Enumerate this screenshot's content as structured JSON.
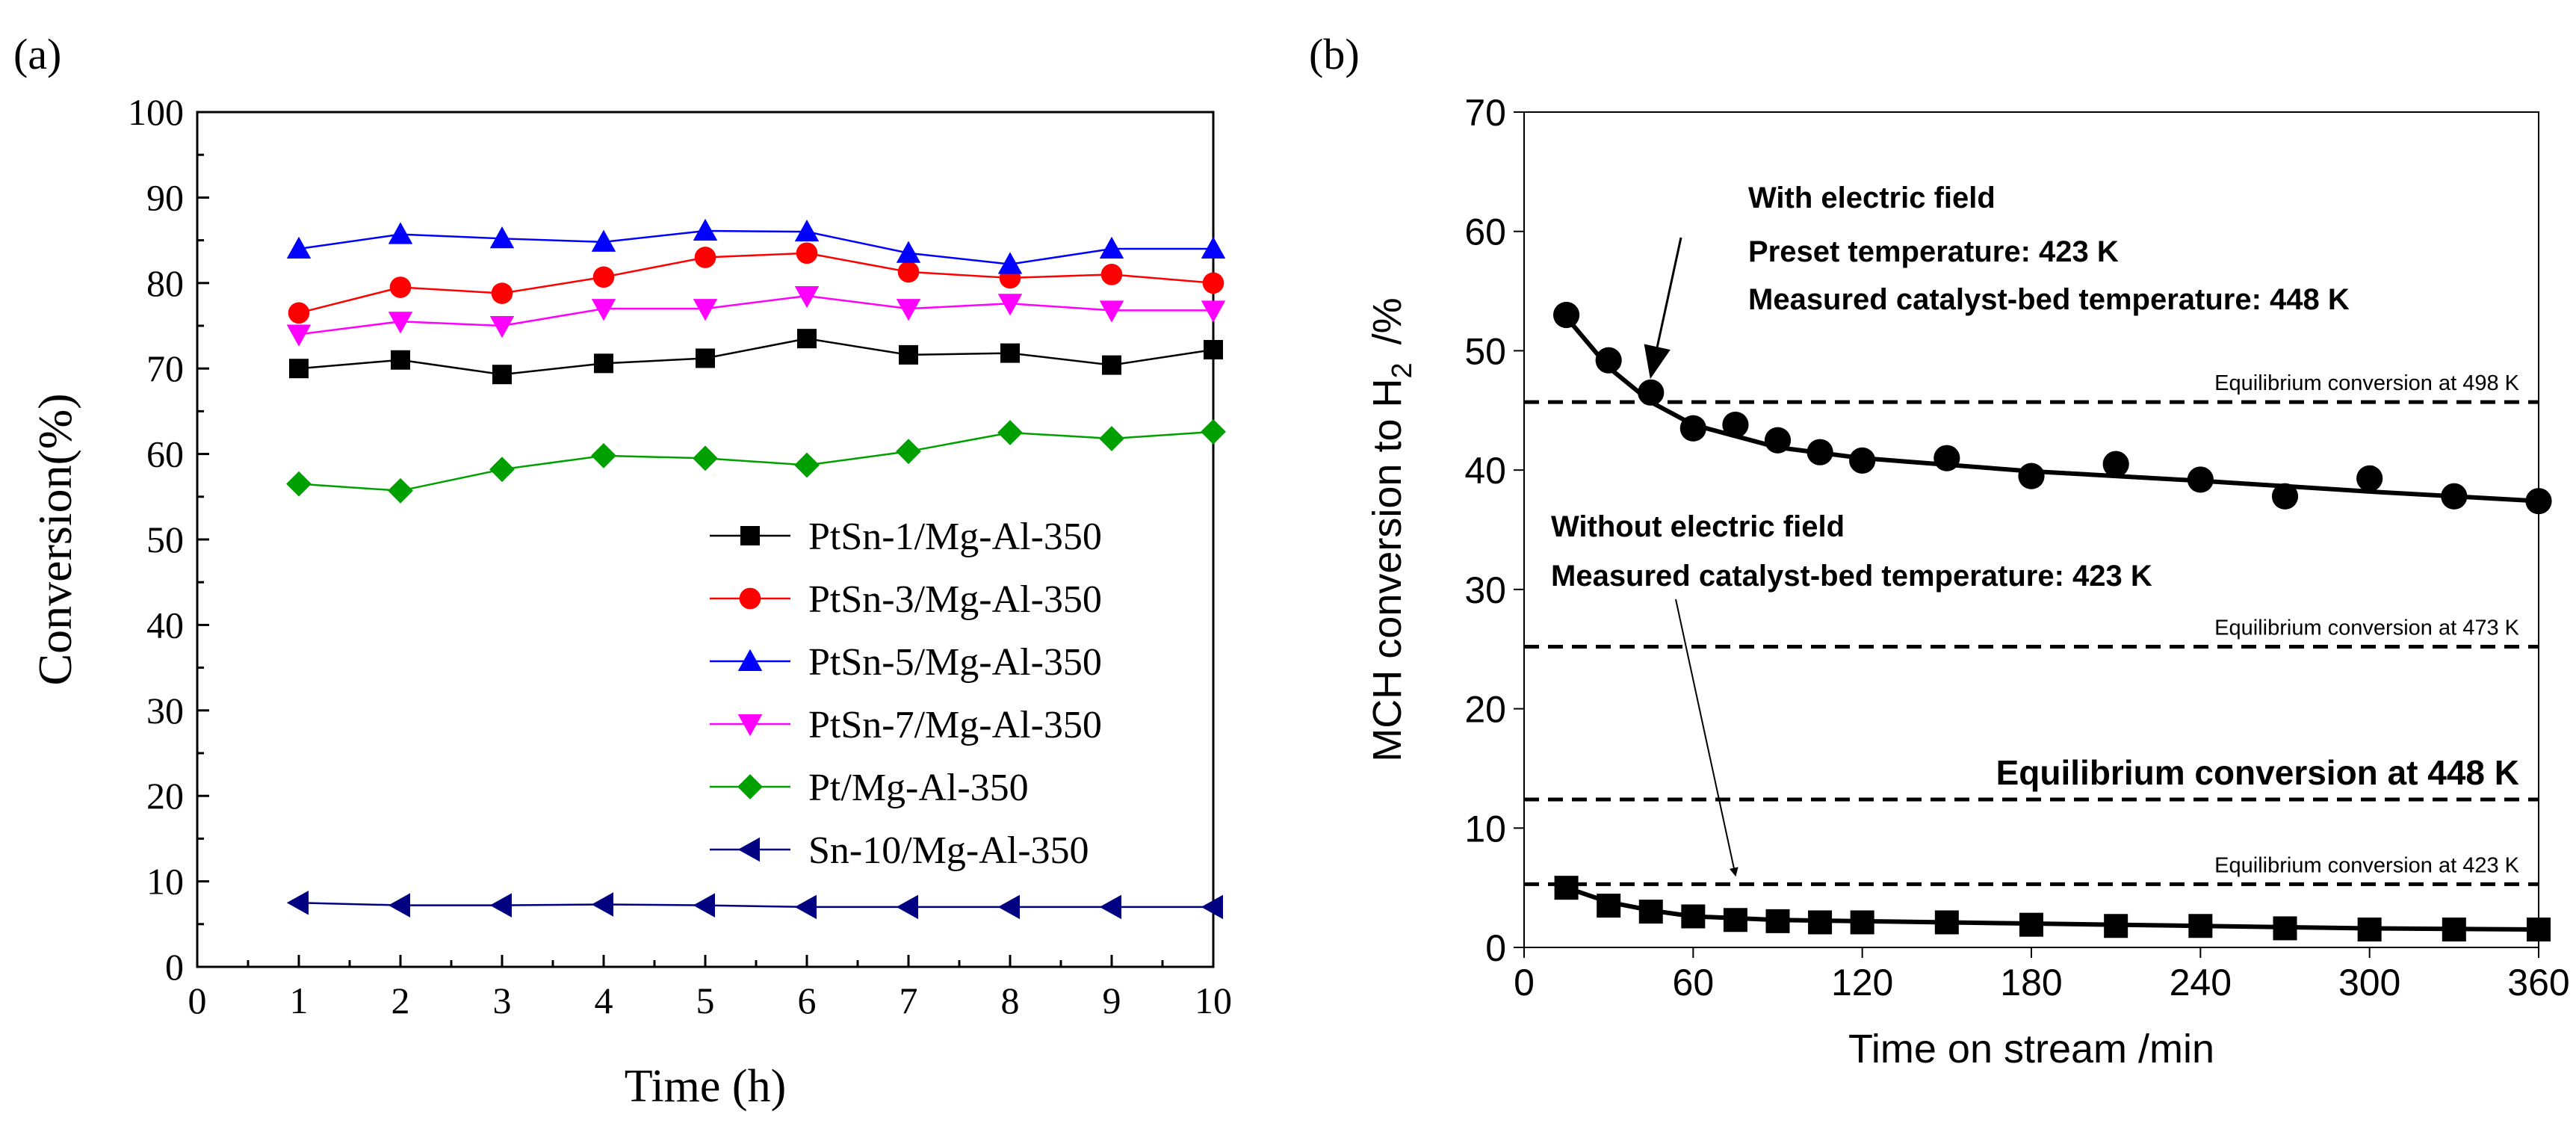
{
  "chart_data": [
    {
      "panel": "(a)",
      "type": "line",
      "xlabel": "Time (h)",
      "ylabel": "Conversion(%)",
      "xlim": [
        0,
        10
      ],
      "ylim": [
        0,
        100
      ],
      "xticks": [
        "0",
        "1",
        "2",
        "3",
        "4",
        "5",
        "6",
        "7",
        "8",
        "9",
        "10"
      ],
      "yticks": [
        "0",
        "10",
        "20",
        "30",
        "40",
        "50",
        "60",
        "70",
        "80",
        "90",
        "100"
      ],
      "x": [
        1,
        2,
        3,
        4,
        5,
        6,
        7,
        8,
        9,
        10
      ],
      "legend_position": "lower-right",
      "series": [
        {
          "name": "PtSn-1/Mg-Al-350",
          "marker": "square",
          "color": "#000000",
          "values": [
            70.0,
            71.0,
            69.3,
            70.6,
            71.2,
            73.5,
            71.6,
            71.8,
            70.4,
            72.2
          ]
        },
        {
          "name": "PtSn-3/Mg-Al-350",
          "marker": "circle",
          "color": "#ff0000",
          "values": [
            76.5,
            79.5,
            78.8,
            80.7,
            83.0,
            83.5,
            81.3,
            80.6,
            81.0,
            80.0
          ]
        },
        {
          "name": "PtSn-5/Mg-Al-350",
          "marker": "triangle-up",
          "color": "#0000ff",
          "values": [
            84.0,
            85.7,
            85.2,
            84.8,
            86.1,
            86.0,
            83.5,
            82.2,
            84.0,
            84.0
          ]
        },
        {
          "name": "PtSn-7/Mg-Al-350",
          "marker": "triangle-down",
          "color": "#ff00ff",
          "values": [
            74.0,
            75.5,
            75.0,
            77.0,
            77.0,
            78.5,
            77.0,
            77.6,
            76.8,
            76.8
          ]
        },
        {
          "name": "Pt/Mg-Al-350",
          "marker": "diamond",
          "color": "#00a000",
          "values": [
            56.5,
            55.7,
            58.2,
            59.8,
            59.5,
            58.7,
            60.3,
            62.5,
            61.8,
            62.6
          ]
        },
        {
          "name": "Sn-10/Mg-Al-350",
          "marker": "triangle-left",
          "color": "#000080",
          "values": [
            7.5,
            7.2,
            7.2,
            7.3,
            7.2,
            7.0,
            7.0,
            7.0,
            7.0,
            7.0
          ]
        }
      ]
    },
    {
      "panel": "(b)",
      "type": "scatter",
      "xlabel": "Time on stream /min",
      "ylabel_main": "MCH conversion to H",
      "ylabel_subscript": "2",
      "ylabel_unit": "/%",
      "xlim": [
        0,
        360
      ],
      "ylim": [
        0,
        70
      ],
      "xticks": [
        "0",
        "60",
        "120",
        "180",
        "240",
        "300",
        "360"
      ],
      "yticks": [
        "0",
        "10",
        "20",
        "30",
        "40",
        "50",
        "60",
        "70"
      ],
      "series": [
        {
          "name": "With electric field",
          "marker": "circle",
          "color": "#000000",
          "x": [
            15,
            30,
            45,
            60,
            75,
            90,
            105,
            120,
            150,
            180,
            210,
            240,
            270,
            300,
            330,
            360
          ],
          "values": [
            53.0,
            49.2,
            46.5,
            43.5,
            43.8,
            42.5,
            41.5,
            40.8,
            41.0,
            39.5,
            40.5,
            39.2,
            37.8,
            39.3,
            37.8,
            37.4
          ],
          "fit_x": [
            15,
            30,
            45,
            60,
            90,
            120,
            180,
            240,
            300,
            360
          ],
          "fit_values": [
            52.8,
            48.6,
            45.7,
            43.8,
            41.9,
            41.0,
            39.9,
            39.1,
            38.2,
            37.4
          ]
        },
        {
          "name": "Without electric field",
          "marker": "square",
          "color": "#000000",
          "x": [
            15,
            30,
            45,
            60,
            75,
            90,
            105,
            120,
            150,
            180,
            210,
            240,
            270,
            300,
            330,
            360
          ],
          "values": [
            5.0,
            3.5,
            3.0,
            2.6,
            2.3,
            2.2,
            2.1,
            2.1,
            2.1,
            1.9,
            1.8,
            1.8,
            1.6,
            1.5,
            1.5,
            1.5
          ],
          "fit_x": [
            15,
            30,
            45,
            60,
            90,
            120,
            180,
            240,
            300,
            360
          ],
          "fit_values": [
            5.0,
            3.8,
            3.1,
            2.6,
            2.3,
            2.2,
            2.0,
            1.8,
            1.6,
            1.5
          ]
        }
      ],
      "equilibrium_lines": [
        {
          "label": "Equilibrium conversion at 498 K",
          "value": 45.7,
          "emphasis": false
        },
        {
          "label": "Equilibrium conversion at 473 K",
          "value": 25.2,
          "emphasis": false
        },
        {
          "label": "Equilibrium conversion at 448 K",
          "value": 12.4,
          "emphasis": true
        },
        {
          "label": "Equilibrium conversion at 423 K",
          "value": 5.3,
          "emphasis": false
        }
      ],
      "annotations": {
        "with_field": [
          "With electric field",
          "Preset temperature: 423 K",
          "Measured catalyst-bed temperature: 448 K"
        ],
        "without_field": [
          "Without electric field",
          "Measured catalyst-bed temperature: 423 K"
        ],
        "with_field_target": {
          "x": 45,
          "y": 46.5
        },
        "without_field_target": {
          "x": 75,
          "y": 4.8
        }
      }
    }
  ]
}
